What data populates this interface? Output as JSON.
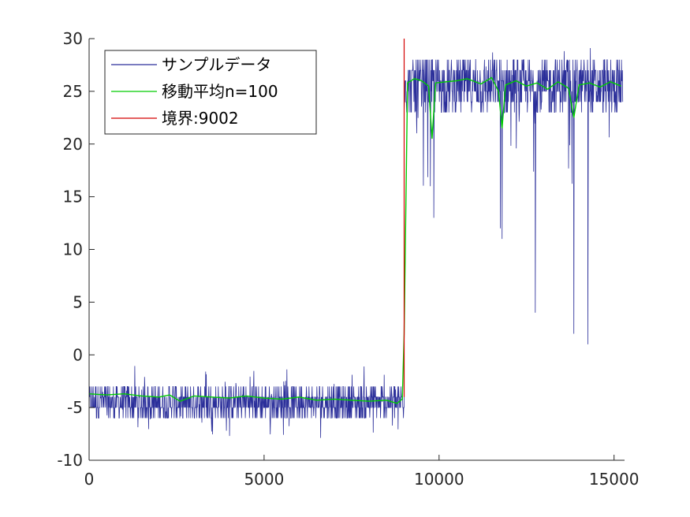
{
  "chart_data": {
    "type": "line",
    "xlim": [
      0,
      15300
    ],
    "ylim": [
      -10,
      30
    ],
    "xticks": [
      0,
      5000,
      10000,
      15000
    ],
    "yticks": [
      -10,
      -5,
      0,
      5,
      10,
      15,
      20,
      25,
      30
    ],
    "grid": false,
    "legend_position": "top-left",
    "series": [
      {
        "name": "サンプルデータ",
        "color": "#2b2f9a",
        "segments": [
          {
            "x_range": [
              0,
              9002
            ],
            "band": [
              -6,
              -3
            ],
            "mean": -4.2,
            "outlier_range": [
              -8,
              -1
            ]
          },
          {
            "x_range": [
              9002,
              15250
            ],
            "band": [
              23,
              28
            ],
            "mean": 25.5,
            "outlier_range": [
              16,
              30
            ]
          }
        ],
        "dips": [
          {
            "x": 9750,
            "y": 16
          },
          {
            "x": 9850,
            "y": 13
          },
          {
            "x": 11750,
            "y": 12
          },
          {
            "x": 11800,
            "y": 11
          },
          {
            "x": 12750,
            "y": 4
          },
          {
            "x": 13850,
            "y": 2
          },
          {
            "x": 14250,
            "y": 1
          }
        ]
      },
      {
        "name": "移動平均n=100",
        "color": "#00cc00",
        "points": [
          [
            0,
            -3.7
          ],
          [
            500,
            -3.8
          ],
          [
            1000,
            -3.7
          ],
          [
            1500,
            -3.9
          ],
          [
            2000,
            -4.0
          ],
          [
            2300,
            -3.8
          ],
          [
            2600,
            -4.4
          ],
          [
            3000,
            -3.9
          ],
          [
            3500,
            -4.0
          ],
          [
            4000,
            -4.1
          ],
          [
            4500,
            -3.9
          ],
          [
            5000,
            -4.1
          ],
          [
            5500,
            -4.2
          ],
          [
            6000,
            -4.0
          ],
          [
            6500,
            -4.3
          ],
          [
            7000,
            -4.2
          ],
          [
            7500,
            -4.3
          ],
          [
            8000,
            -4.4
          ],
          [
            8500,
            -4.3
          ],
          [
            8800,
            -4.6
          ],
          [
            8950,
            -4.2
          ],
          [
            9002,
            2.0
          ],
          [
            9100,
            25.8
          ],
          [
            9300,
            26.2
          ],
          [
            9500,
            26.0
          ],
          [
            9700,
            25.5
          ],
          [
            9800,
            20.5
          ],
          [
            9900,
            25.8
          ],
          [
            10200,
            25.9
          ],
          [
            10500,
            26.0
          ],
          [
            10800,
            26.2
          ],
          [
            11200,
            25.7
          ],
          [
            11500,
            26.3
          ],
          [
            11700,
            25.0
          ],
          [
            11800,
            21.5
          ],
          [
            11900,
            25.6
          ],
          [
            12200,
            26.0
          ],
          [
            12500,
            25.5
          ],
          [
            12800,
            25.8
          ],
          [
            13100,
            25.2
          ],
          [
            13400,
            25.9
          ],
          [
            13700,
            25.3
          ],
          [
            13850,
            22.5
          ],
          [
            14000,
            25.6
          ],
          [
            14300,
            25.8
          ],
          [
            14600,
            25.4
          ],
          [
            14900,
            25.9
          ],
          [
            15200,
            25.5
          ]
        ]
      },
      {
        "name": "境界:9002",
        "color": "#d40000",
        "points": [
          [
            9002,
            -4
          ],
          [
            9002,
            30
          ]
        ]
      }
    ]
  }
}
